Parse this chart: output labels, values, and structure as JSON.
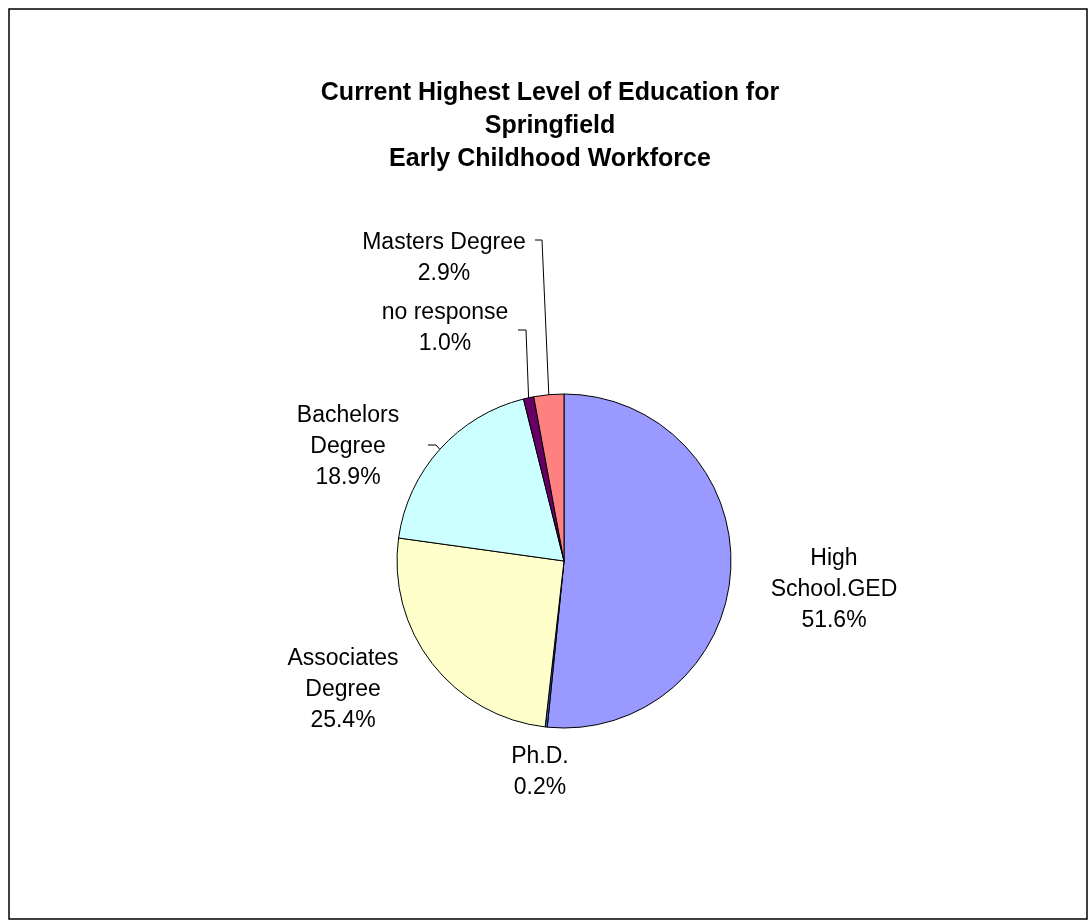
{
  "chart_data": {
    "type": "pie",
    "title": "Current Highest Level of Education for\nSpringfield\nEarly Childhood Workforce",
    "categories": [
      "High School.GED",
      "Ph.D.",
      "Associates Degree",
      "Bachelors Degree",
      "no response",
      "Masters Degree"
    ],
    "values": [
      51.6,
      0.2,
      25.4,
      18.9,
      1.0,
      2.9
    ],
    "colors": [
      "#9999ff",
      "#3366cc",
      "#ffffcc",
      "#ccffff",
      "#660066",
      "#ff8080"
    ],
    "value_labels": [
      "51.6%",
      "0.2%",
      "25.4%",
      "18.9%",
      "1.0%",
      "2.9%"
    ]
  }
}
